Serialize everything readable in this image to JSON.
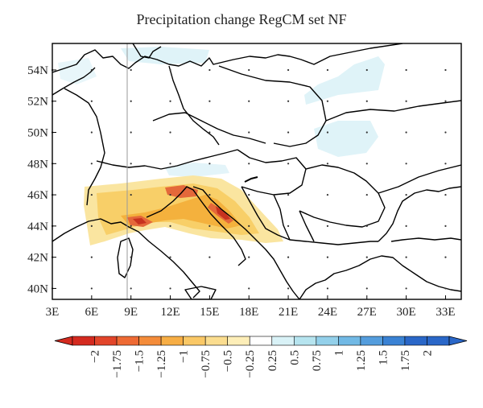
{
  "title": "Precipitation change RegCM set NF",
  "map": {
    "lat_labels": [
      "54N",
      "52N",
      "50N",
      "48N",
      "46N",
      "44N",
      "42N",
      "40N"
    ],
    "lon_labels": [
      "3E",
      "6E",
      "9E",
      "12E",
      "15E",
      "18E",
      "21E",
      "24E",
      "27E",
      "30E",
      "33E"
    ],
    "lat_range": [
      39.3,
      55.7
    ],
    "lon_range": [
      3,
      34.2
    ],
    "border_color": "#000000",
    "dry_colors": [
      "#f4b13d",
      "#f8cf68",
      "#fae5a0",
      "#e4683a",
      "#c7321f"
    ],
    "wet_colors": [
      "#dff3f8"
    ]
  },
  "colorbar": {
    "ticks": [
      "−2",
      "−1.75",
      "−1.5",
      "−1.25",
      "−1",
      "−0.75",
      "−0.5",
      "−0.25",
      "0.25",
      "0.5",
      "0.75",
      "1",
      "1.25",
      "1.5",
      "1.75",
      "2"
    ],
    "colors": [
      "#d42a1f",
      "#e2452a",
      "#ee6a34",
      "#f48c3a",
      "#f7ae45",
      "#fac866",
      "#fbdd8f",
      "#fdeeb8",
      "#ffffff",
      "#d9f2f7",
      "#b6e4ef",
      "#93d0ea",
      "#71b9e5",
      "#549ddd",
      "#3a82d4",
      "#2a67c8",
      "#2a67c8"
    ]
  }
}
